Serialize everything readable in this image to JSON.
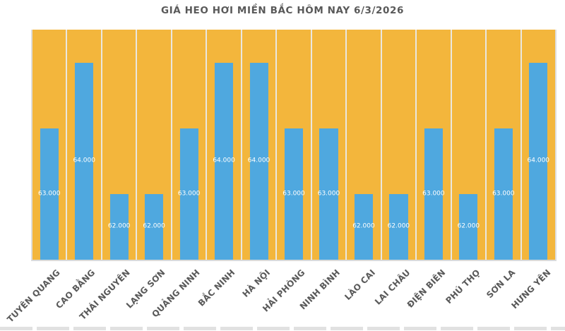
{
  "chart_data": {
    "type": "bar",
    "title": "GIÁ HEO HƠI MIỀN BẮC HÔM NAY 6/3/2026",
    "categories": [
      "TUYÊN QUANG",
      "CAO BẰNG",
      "THÁI NGUYÊN",
      "LẠNG SƠN",
      "QUẢNG NINH",
      "BẮC NINH",
      "HÀ NỘI",
      "HẢI PHÒNG",
      "NINH BÌNH",
      "LÀO CAI",
      "LAI CHÂU",
      "ĐIỆN BIÊN",
      "PHÚ THỌ",
      "SƠN LA",
      "HƯNG YÊN"
    ],
    "values": [
      63000,
      64000,
      62000,
      62000,
      63000,
      64000,
      64000,
      63000,
      63000,
      62000,
      62000,
      63000,
      62000,
      63000,
      64000
    ],
    "value_labels": [
      "63.000",
      "64.000",
      "62.000",
      "62.000",
      "63.000",
      "64.000",
      "64.000",
      "63.000",
      "63.000",
      "62.000",
      "62.000",
      "63.000",
      "62.000",
      "63.000",
      "64.000"
    ],
    "xlabel": "",
    "ylabel": "",
    "ylim": [
      61000,
      64500
    ],
    "legend": "none",
    "grid": "vertical-category-separators",
    "x_tick_rotation_deg": 45,
    "colors": {
      "bar": "#4FA8DF",
      "plot_background": "#F3B63C",
      "separator": "#EAE7E0",
      "axis_line": "#DADADA",
      "title_text": "#595959",
      "axis_text": "#595959",
      "value_label_text": "#FFFFFF",
      "page_background": "#FFFFFF"
    }
  }
}
